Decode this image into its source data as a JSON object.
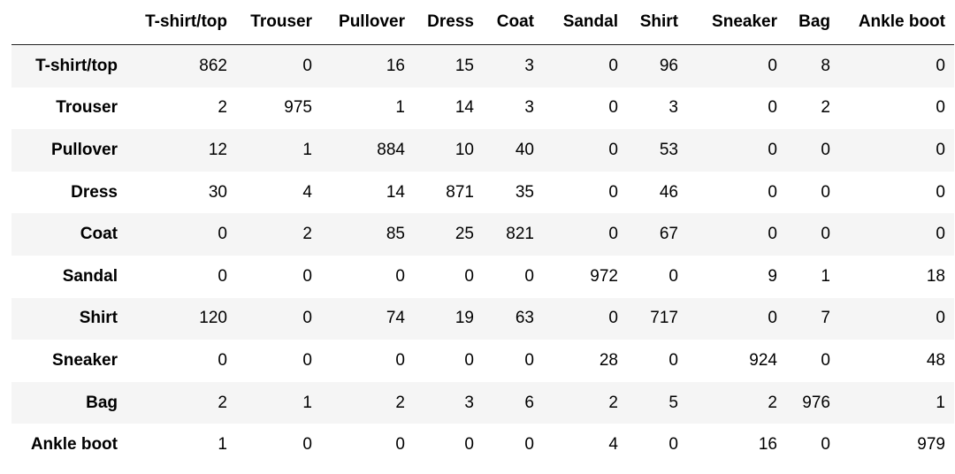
{
  "chart_data": {
    "type": "table",
    "columns": [
      "T-shirt/top",
      "Trouser",
      "Pullover",
      "Dress",
      "Coat",
      "Sandal",
      "Shirt",
      "Sneaker",
      "Bag",
      "Ankle boot"
    ],
    "rows": [
      {
        "label": "T-shirt/top",
        "values": [
          862,
          0,
          16,
          15,
          3,
          0,
          96,
          0,
          8,
          0
        ]
      },
      {
        "label": "Trouser",
        "values": [
          2,
          975,
          1,
          14,
          3,
          0,
          3,
          0,
          2,
          0
        ]
      },
      {
        "label": "Pullover",
        "values": [
          12,
          1,
          884,
          10,
          40,
          0,
          53,
          0,
          0,
          0
        ]
      },
      {
        "label": "Dress",
        "values": [
          30,
          4,
          14,
          871,
          35,
          0,
          46,
          0,
          0,
          0
        ]
      },
      {
        "label": "Coat",
        "values": [
          0,
          2,
          85,
          25,
          821,
          0,
          67,
          0,
          0,
          0
        ]
      },
      {
        "label": "Sandal",
        "values": [
          0,
          0,
          0,
          0,
          0,
          972,
          0,
          9,
          1,
          18
        ]
      },
      {
        "label": "Shirt",
        "values": [
          120,
          0,
          74,
          19,
          63,
          0,
          717,
          0,
          7,
          0
        ]
      },
      {
        "label": "Sneaker",
        "values": [
          0,
          0,
          0,
          0,
          0,
          28,
          0,
          924,
          0,
          48
        ]
      },
      {
        "label": "Bag",
        "values": [
          2,
          1,
          2,
          3,
          6,
          2,
          5,
          2,
          976,
          1
        ]
      },
      {
        "label": "Ankle boot",
        "values": [
          1,
          0,
          0,
          0,
          0,
          4,
          0,
          16,
          0,
          979
        ]
      }
    ],
    "striped_rows": true,
    "stripe_color": "#f5f5f5"
  }
}
